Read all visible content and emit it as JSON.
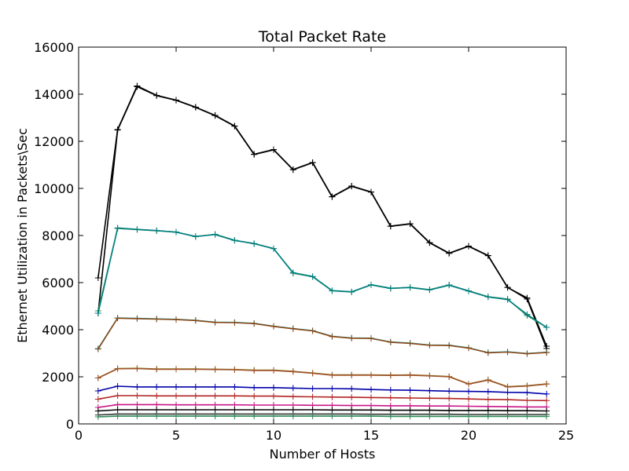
{
  "chart_data": {
    "type": "line",
    "title": "Total Packet Rate",
    "xlabel": "Number of Hosts",
    "ylabel": "Ethernet Utilization in Packets\\Sec",
    "xlim": [
      0,
      25
    ],
    "ylim": [
      0,
      16000
    ],
    "xticks": [
      0,
      5,
      10,
      15,
      20,
      25
    ],
    "yticks": [
      0,
      2000,
      4000,
      6000,
      8000,
      10000,
      12000,
      14000,
      16000
    ],
    "grid": false,
    "legend": "none",
    "x": [
      1,
      2,
      3,
      4,
      5,
      6,
      7,
      8,
      9,
      10,
      11,
      12,
      13,
      14,
      15,
      16,
      17,
      18,
      19,
      20,
      21,
      22,
      23,
      24
    ],
    "series": [
      {
        "color": "#000000",
        "values": [
          6200,
          12500,
          14350,
          13950,
          13750,
          13450,
          13100,
          12650,
          11450,
          11650,
          10800,
          11100,
          9650,
          10100,
          9850,
          8400,
          8500,
          7700,
          7250,
          7550,
          7150,
          5800,
          5300,
          3200
        ]
      },
      {
        "color": "#000000",
        "values": [
          4700,
          12480,
          14320,
          13940,
          13740,
          13440,
          13090,
          12640,
          11440,
          11640,
          10790,
          11090,
          9640,
          10090,
          9840,
          8390,
          8490,
          7690,
          7240,
          7540,
          7140,
          5790,
          5350,
          3300
        ]
      },
      {
        "color": "#2e8b57",
        "values": [
          4800,
          8300,
          8250,
          8200,
          8150,
          7950,
          8050,
          7800,
          7650,
          7450,
          6400,
          6250,
          5650,
          5600,
          5900,
          5750,
          5800,
          5700,
          5900,
          5650,
          5400,
          5300,
          4600,
          4100
        ]
      },
      {
        "color": "#008080",
        "values": [
          4700,
          8320,
          8260,
          8210,
          8140,
          7960,
          8040,
          7790,
          7660,
          7440,
          6420,
          6260,
          5660,
          5610,
          5910,
          5760,
          5790,
          5690,
          5890,
          5640,
          5390,
          5280,
          4650,
          4100
        ]
      },
      {
        "color": "#17becf",
        "values": [
          3200,
          4500,
          4480,
          4460,
          4440,
          4400,
          4320,
          4310,
          4270,
          4150,
          4050,
          3960,
          3720,
          3650,
          3640,
          3480,
          3430,
          3350,
          3340,
          3230,
          3030,
          3060,
          2990,
          3040
        ]
      },
      {
        "color": "#8b4513",
        "values": [
          3180,
          4490,
          4470,
          4450,
          4430,
          4390,
          4310,
          4300,
          4260,
          4140,
          4040,
          3950,
          3710,
          3640,
          3630,
          3470,
          3420,
          3340,
          3330,
          3220,
          3020,
          3050,
          2980,
          3030
        ]
      },
      {
        "color": "#808000",
        "values": [
          1950,
          2350,
          2360,
          2330,
          2330,
          2330,
          2320,
          2310,
          2280,
          2280,
          2230,
          2160,
          2080,
          2080,
          2080,
          2070,
          2080,
          2050,
          2010,
          1700,
          1870,
          1580,
          1620,
          1700
        ]
      },
      {
        "color": "#a0522d",
        "values": [
          1950,
          2340,
          2350,
          2320,
          2320,
          2320,
          2310,
          2300,
          2270,
          2270,
          2220,
          2150,
          2070,
          2070,
          2070,
          2060,
          2070,
          2040,
          2000,
          1690,
          1860,
          1570,
          1610,
          1690
        ]
      },
      {
        "color": "#0000aa",
        "values": [
          1400,
          1600,
          1570,
          1570,
          1570,
          1570,
          1570,
          1570,
          1540,
          1540,
          1520,
          1500,
          1500,
          1490,
          1460,
          1440,
          1430,
          1410,
          1390,
          1380,
          1370,
          1340,
          1330,
          1270
        ]
      },
      {
        "color": "#b22222",
        "values": [
          1050,
          1200,
          1200,
          1190,
          1190,
          1190,
          1190,
          1190,
          1180,
          1180,
          1160,
          1150,
          1140,
          1130,
          1120,
          1110,
          1100,
          1090,
          1080,
          1060,
          1040,
          1030,
          1000,
          990
        ]
      },
      {
        "color": "#c71585",
        "values": [
          700,
          820,
          820,
          820,
          810,
          810,
          810,
          810,
          800,
          800,
          800,
          790,
          790,
          780,
          780,
          770,
          770,
          760,
          760,
          750,
          740,
          730,
          720,
          720
        ]
      },
      {
        "color": "#000000",
        "values": [
          550,
          600,
          600,
          600,
          600,
          600,
          600,
          600,
          600,
          600,
          600,
          600,
          590,
          590,
          590,
          580,
          580,
          580,
          570,
          570,
          570,
          560,
          560,
          550
        ]
      },
      {
        "color": "#333333",
        "values": [
          380,
          420,
          420,
          420,
          420,
          420,
          420,
          420,
          420,
          420,
          420,
          420,
          420,
          420,
          410,
          410,
          410,
          410,
          410,
          400,
          400,
          400,
          400,
          400
        ]
      },
      {
        "color": "#2e8b57",
        "values": [
          300,
          330,
          330,
          330,
          330,
          330,
          330,
          330,
          330,
          330,
          330,
          330,
          330,
          330,
          330,
          320,
          320,
          320,
          320,
          320,
          320,
          320,
          320,
          320
        ]
      }
    ]
  }
}
